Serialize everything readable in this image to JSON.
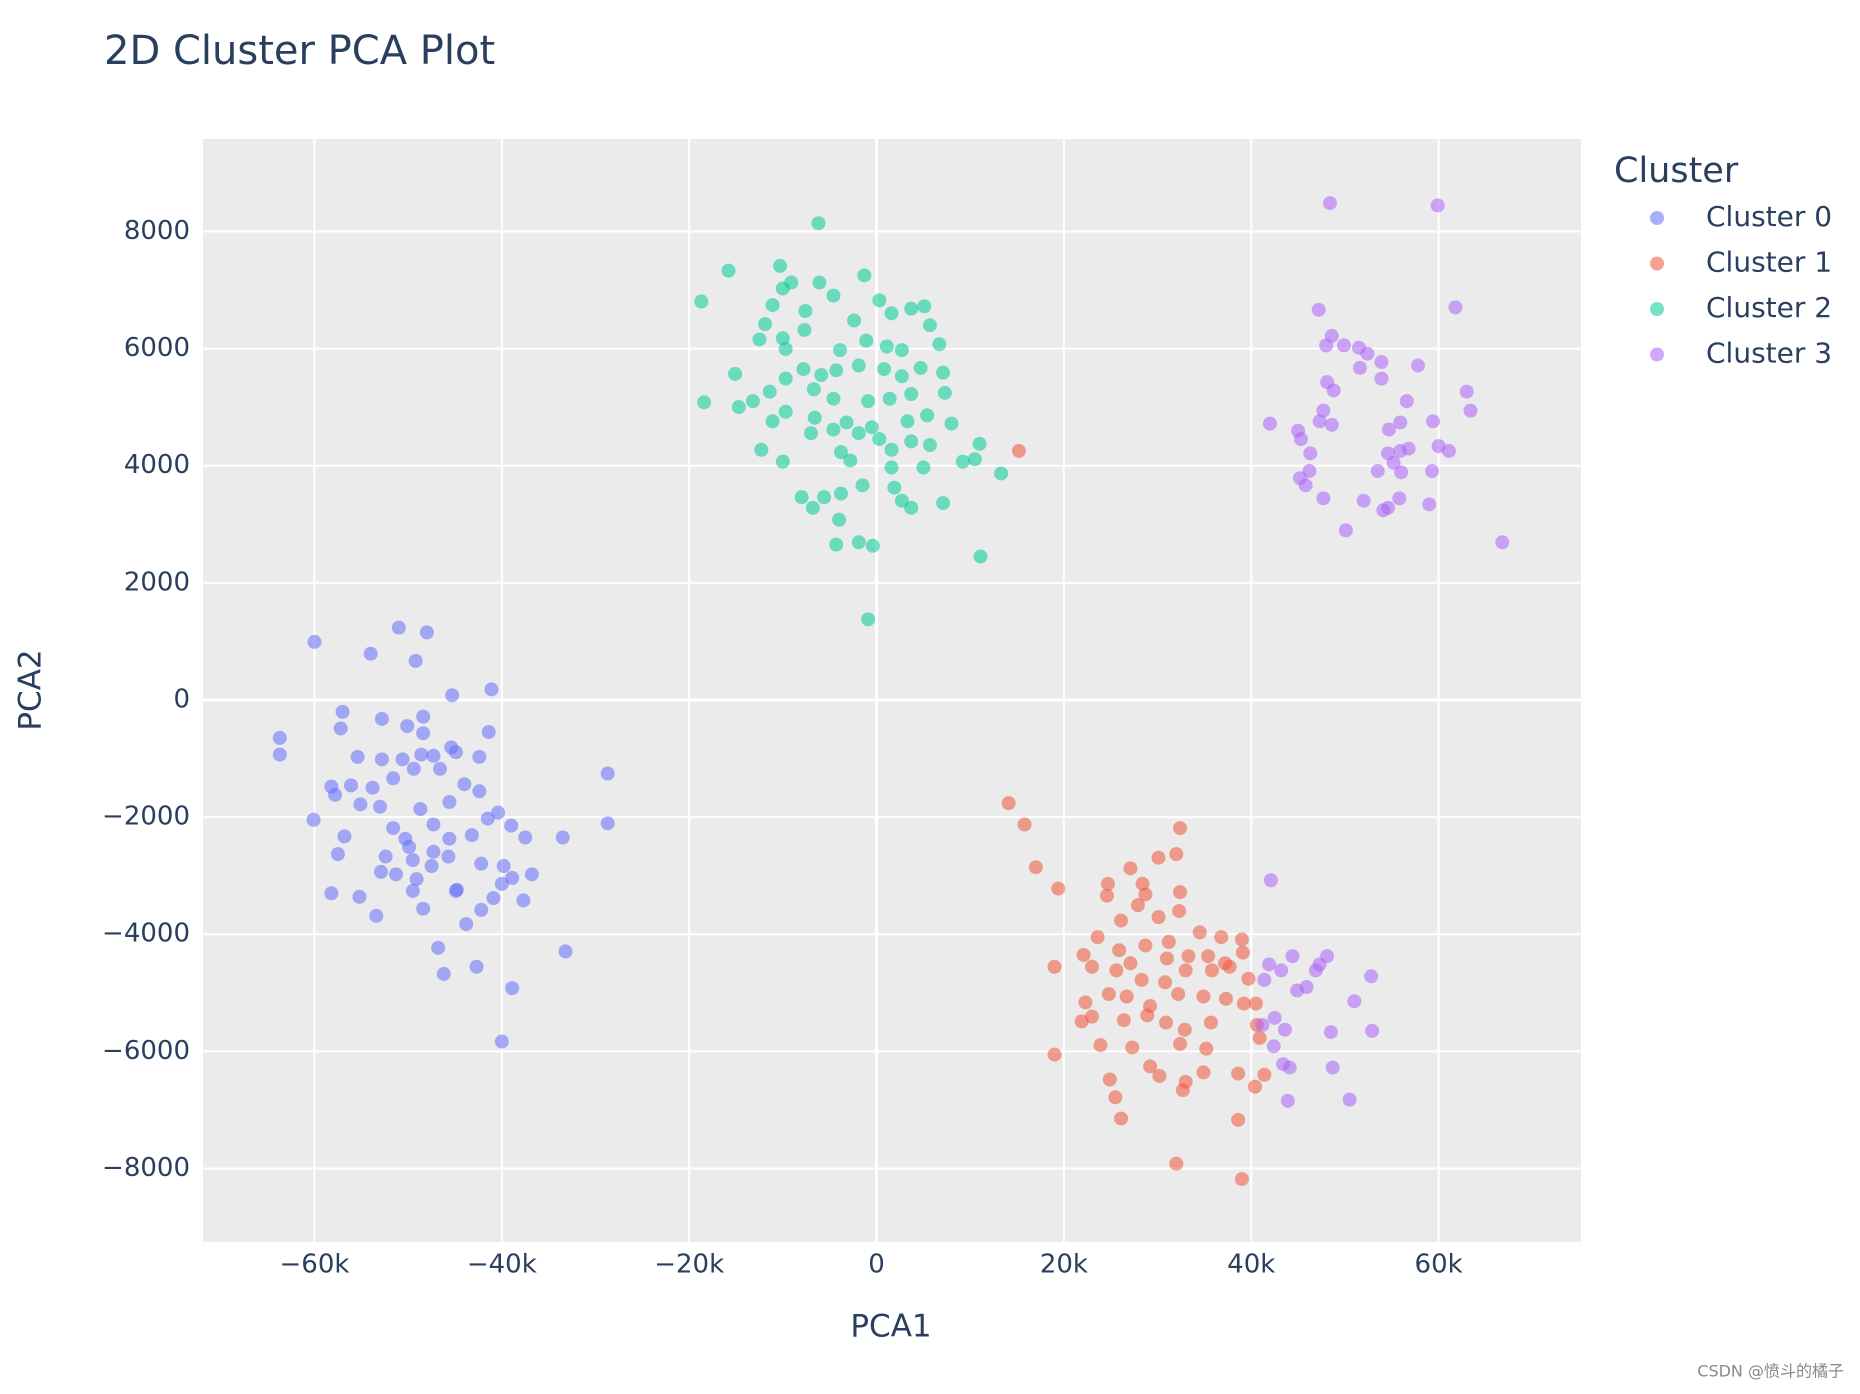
{
  "chart_data": {
    "type": "scatter",
    "title": "2D Cluster PCA Plot",
    "x_label": "PCA1",
    "y_label": "PCA2",
    "legend_title": "Cluster",
    "legend_position": "outside-right",
    "grid": true,
    "xlim": [
      -71900,
      75200
    ],
    "ylim": [
      -9255,
      9579
    ],
    "xticks": [
      {
        "value": -60000,
        "label": "−60k"
      },
      {
        "value": -40000,
        "label": "−40k"
      },
      {
        "value": -20000,
        "label": "−20k"
      },
      0,
      {
        "value": 20000,
        "label": "20k"
      },
      {
        "value": 40000,
        "label": "40k"
      },
      {
        "value": 60000,
        "label": "60k"
      }
    ],
    "yticks": [
      {
        "value": -8000,
        "label": "−8000"
      },
      {
        "value": -6000,
        "label": "−6000"
      },
      {
        "value": -4000,
        "label": "−4000"
      },
      {
        "value": -2000,
        "label": "−2000"
      },
      0,
      2000,
      4000,
      6000,
      8000
    ],
    "series": [
      {
        "name": "Cluster 0",
        "color": "#636efa",
        "x": [
          -63700,
          -63700,
          -60000,
          -51000,
          -48000,
          -54000,
          -49200,
          -45300,
          -41100,
          -57000,
          -57200,
          -28700,
          -28700,
          -33500,
          -33200,
          -38900,
          -40000,
          -46200,
          -42700,
          -46800,
          -43800,
          -58200,
          -60100,
          -58200,
          -57500,
          -55200,
          -53400,
          -52900,
          -51300,
          -49500,
          -48400,
          -44900,
          -42200,
          -40900,
          -40000,
          -37700,
          -36800,
          -37500,
          -39000,
          -40400,
          -41500,
          -42400,
          -43200,
          -45600,
          -47300,
          -48700,
          -50300,
          -51600,
          -53000,
          -55100,
          -56100,
          -53800,
          -51600,
          -49400,
          -47300,
          -44900,
          -42400,
          -41400,
          -45400,
          -48400,
          -50100,
          -52800,
          -55400,
          -52800,
          -50600,
          -48400,
          -48600,
          -46600,
          -44000,
          -45600,
          -47300,
          -49900,
          -52400,
          -49500,
          -47500,
          -45700,
          -42200,
          -39800,
          -38900,
          -44800,
          -49100,
          -56800,
          -57800
        ],
        "y": [
          -648,
          -932,
          992,
          1235,
          1154,
          790,
          668,
          81,
          182,
          -203,
          -486,
          -1256,
          -2106,
          -2349,
          -4293,
          -4921,
          -5832,
          -4678,
          -4556,
          -4232,
          -3827,
          -3301,
          -2045,
          -1478,
          -2632,
          -3361,
          -3686,
          -2936,
          -2977,
          -3260,
          -3564,
          -3260,
          -3584,
          -3382,
          -3139,
          -3422,
          -2977,
          -2349,
          -2146,
          -1924,
          -2025,
          -1559,
          -2308,
          -2369,
          -2126,
          -1863,
          -2369,
          -2187,
          -1823,
          -1782,
          -1458,
          -1498,
          -1337,
          -1175,
          -952,
          -891,
          -972,
          -547,
          -810,
          -567,
          -446,
          -324,
          -972,
          -1013,
          -1013,
          -284,
          -932,
          -1175,
          -1438,
          -1742,
          -2592,
          -2511,
          -2673,
          -2734,
          -2835,
          -2673,
          -2795,
          -2835,
          -3038,
          -3240,
          -3058,
          -2329,
          -1620
        ]
      },
      {
        "name": "Cluster 1",
        "color": "#ef553b",
        "x": [
          15200,
          14100,
          15800,
          17000,
          19400,
          19000,
          19000,
          32400,
          32000,
          30100,
          27100,
          24700,
          28400,
          32400,
          28700,
          24600,
          27900,
          32300,
          30100,
          26100,
          23600,
          25900,
          28700,
          31200,
          34500,
          36800,
          39000,
          39100,
          37200,
          35400,
          33300,
          31000,
          22100,
          23000,
          25600,
          27100,
          28300,
          30800,
          33000,
          35800,
          37700,
          39700,
          40500,
          39200,
          37300,
          34900,
          32200,
          29200,
          26700,
          24800,
          22300,
          21900,
          23000,
          26400,
          28900,
          30900,
          32900,
          35700,
          40900,
          40600,
          35200,
          32400,
          23900,
          27300,
          29200,
          30200,
          33000,
          34900,
          38600,
          24900,
          25500,
          32700,
          40400,
          41400,
          26100,
          38600,
          32000,
          39000
        ],
        "y": [
          4253,
          -1762,
          -2126,
          -2855,
          -3220,
          -4556,
          -6055,
          -2187,
          -2632,
          -2693,
          -2875,
          -3139,
          -3139,
          -3281,
          -3321,
          -3341,
          -3503,
          -3604,
          -3706,
          -3767,
          -4050,
          -4273,
          -4192,
          -4131,
          -3969,
          -4050,
          -4090,
          -4313,
          -4496,
          -4374,
          -4374,
          -4415,
          -4354,
          -4556,
          -4617,
          -4496,
          -4779,
          -4820,
          -4617,
          -4617,
          -4556,
          -4759,
          -5184,
          -5184,
          -5103,
          -5063,
          -5022,
          -5225,
          -5063,
          -5022,
          -5164,
          -5488,
          -5407,
          -5468,
          -5387,
          -5508,
          -5630,
          -5508,
          -5771,
          -5549,
          -5954,
          -5873,
          -5893,
          -5933,
          -6257,
          -6419,
          -6520,
          -6359,
          -6379,
          -6480,
          -6784,
          -6662,
          -6602,
          -6399,
          -7148,
          -7169,
          -7918,
          -8181
        ]
      },
      {
        "name": "Cluster 2",
        "color": "#00cc96",
        "x": [
          -6200,
          -15800,
          -18700,
          -10300,
          -10000,
          -9100,
          -6100,
          -1300,
          -4600,
          300,
          -11100,
          -7600,
          -2400,
          1600,
          3700,
          5100,
          5700,
          6700,
          -11900,
          -10000,
          -9700,
          -12500,
          -7700,
          -3900,
          -1100,
          1100,
          2700,
          -15100,
          -9700,
          -7800,
          -5900,
          -4300,
          -1900,
          800,
          2700,
          4700,
          7100,
          -13200,
          -11400,
          -6700,
          -4600,
          -900,
          1400,
          3700,
          7300,
          -18400,
          -14700,
          -9700,
          -6600,
          -3200,
          -500,
          3300,
          5400,
          8000,
          -11100,
          -7000,
          -4600,
          -1900,
          300,
          3700,
          5700,
          11000,
          -12300,
          -3800,
          1600,
          9200,
          10500,
          -10000,
          -2800,
          1600,
          5000,
          13300,
          -1500,
          1900,
          -8000,
          -5600,
          -3800,
          2700,
          3700,
          7100,
          -6800,
          -4000,
          -4300,
          -1900,
          -400,
          11100,
          -900
        ],
        "y": [
          8141,
          7331,
          6804,
          7412,
          7027,
          7128,
          7128,
          7250,
          6905,
          6824,
          6743,
          6642,
          6480,
          6602,
          6682,
          6723,
          6399,
          6075,
          6419,
          6176,
          5994,
          6156,
          6318,
          5974,
          6136,
          6035,
          5974,
          5569,
          5488,
          5650,
          5549,
          5630,
          5711,
          5650,
          5528,
          5670,
          5589,
          5103,
          5265,
          5306,
          5144,
          5103,
          5144,
          5225,
          5245,
          5083,
          5002,
          4921,
          4820,
          4739,
          4658,
          4759,
          4860,
          4718,
          4759,
          4556,
          4617,
          4556,
          4455,
          4415,
          4354,
          4374,
          4273,
          4232,
          4273,
          4070,
          4111,
          4070,
          4090,
          3969,
          3969,
          3868,
          3665,
          3625,
          3463,
          3463,
          3524,
          3402,
          3281,
          3362,
          3281,
          3078,
          2653,
          2693,
          2633,
          2450,
          1377
        ]
      },
      {
        "name": "Cluster 3",
        "color": "#ab63fa",
        "x": [
          48400,
          59900,
          61800,
          47200,
          48600,
          48000,
          49900,
          51500,
          52400,
          53900,
          51600,
          57800,
          53900,
          48100,
          48800,
          63000,
          56600,
          63400,
          47700,
          42000,
          47300,
          48600,
          55900,
          59400,
          54700,
          45000,
          45300,
          60000,
          55900,
          56800,
          61100,
          46300,
          54600,
          55200,
          46200,
          53500,
          56000,
          59300,
          45200,
          45800,
          47700,
          52000,
          55800,
          59000,
          54100,
          54600,
          50100,
          66800,
          42100,
          44400,
          41900,
          43200,
          41400,
          46900,
          47300,
          48100,
          45900,
          44900,
          52800,
          51000,
          42500,
          41200,
          43600,
          48500,
          52900,
          42400,
          43400,
          44100,
          48700,
          43900,
          50500
        ],
        "y": [
          8485,
          8444,
          6703,
          6662,
          6217,
          6055,
          6055,
          6014,
          5913,
          5771,
          5670,
          5711,
          5488,
          5427,
          5285,
          5265,
          5103,
          4941,
          4941,
          4718,
          4759,
          4698,
          4739,
          4759,
          4617,
          4597,
          4455,
          4334,
          4253,
          4293,
          4253,
          4212,
          4212,
          4050,
          3909,
          3909,
          3888,
          3909,
          3787,
          3665,
          3443,
          3402,
          3443,
          3341,
          3240,
          3281,
          2896,
          2693,
          -3078,
          -4374,
          -4516,
          -4617,
          -4779,
          -4617,
          -4516,
          -4374,
          -4901,
          -4961,
          -4718,
          -5144,
          -5427,
          -5549,
          -5630,
          -5671,
          -5650,
          -5913,
          -6217,
          -6277,
          -6277,
          -6845,
          -6824
        ]
      }
    ]
  },
  "watermark": "CSDN @愤斗的橘子"
}
